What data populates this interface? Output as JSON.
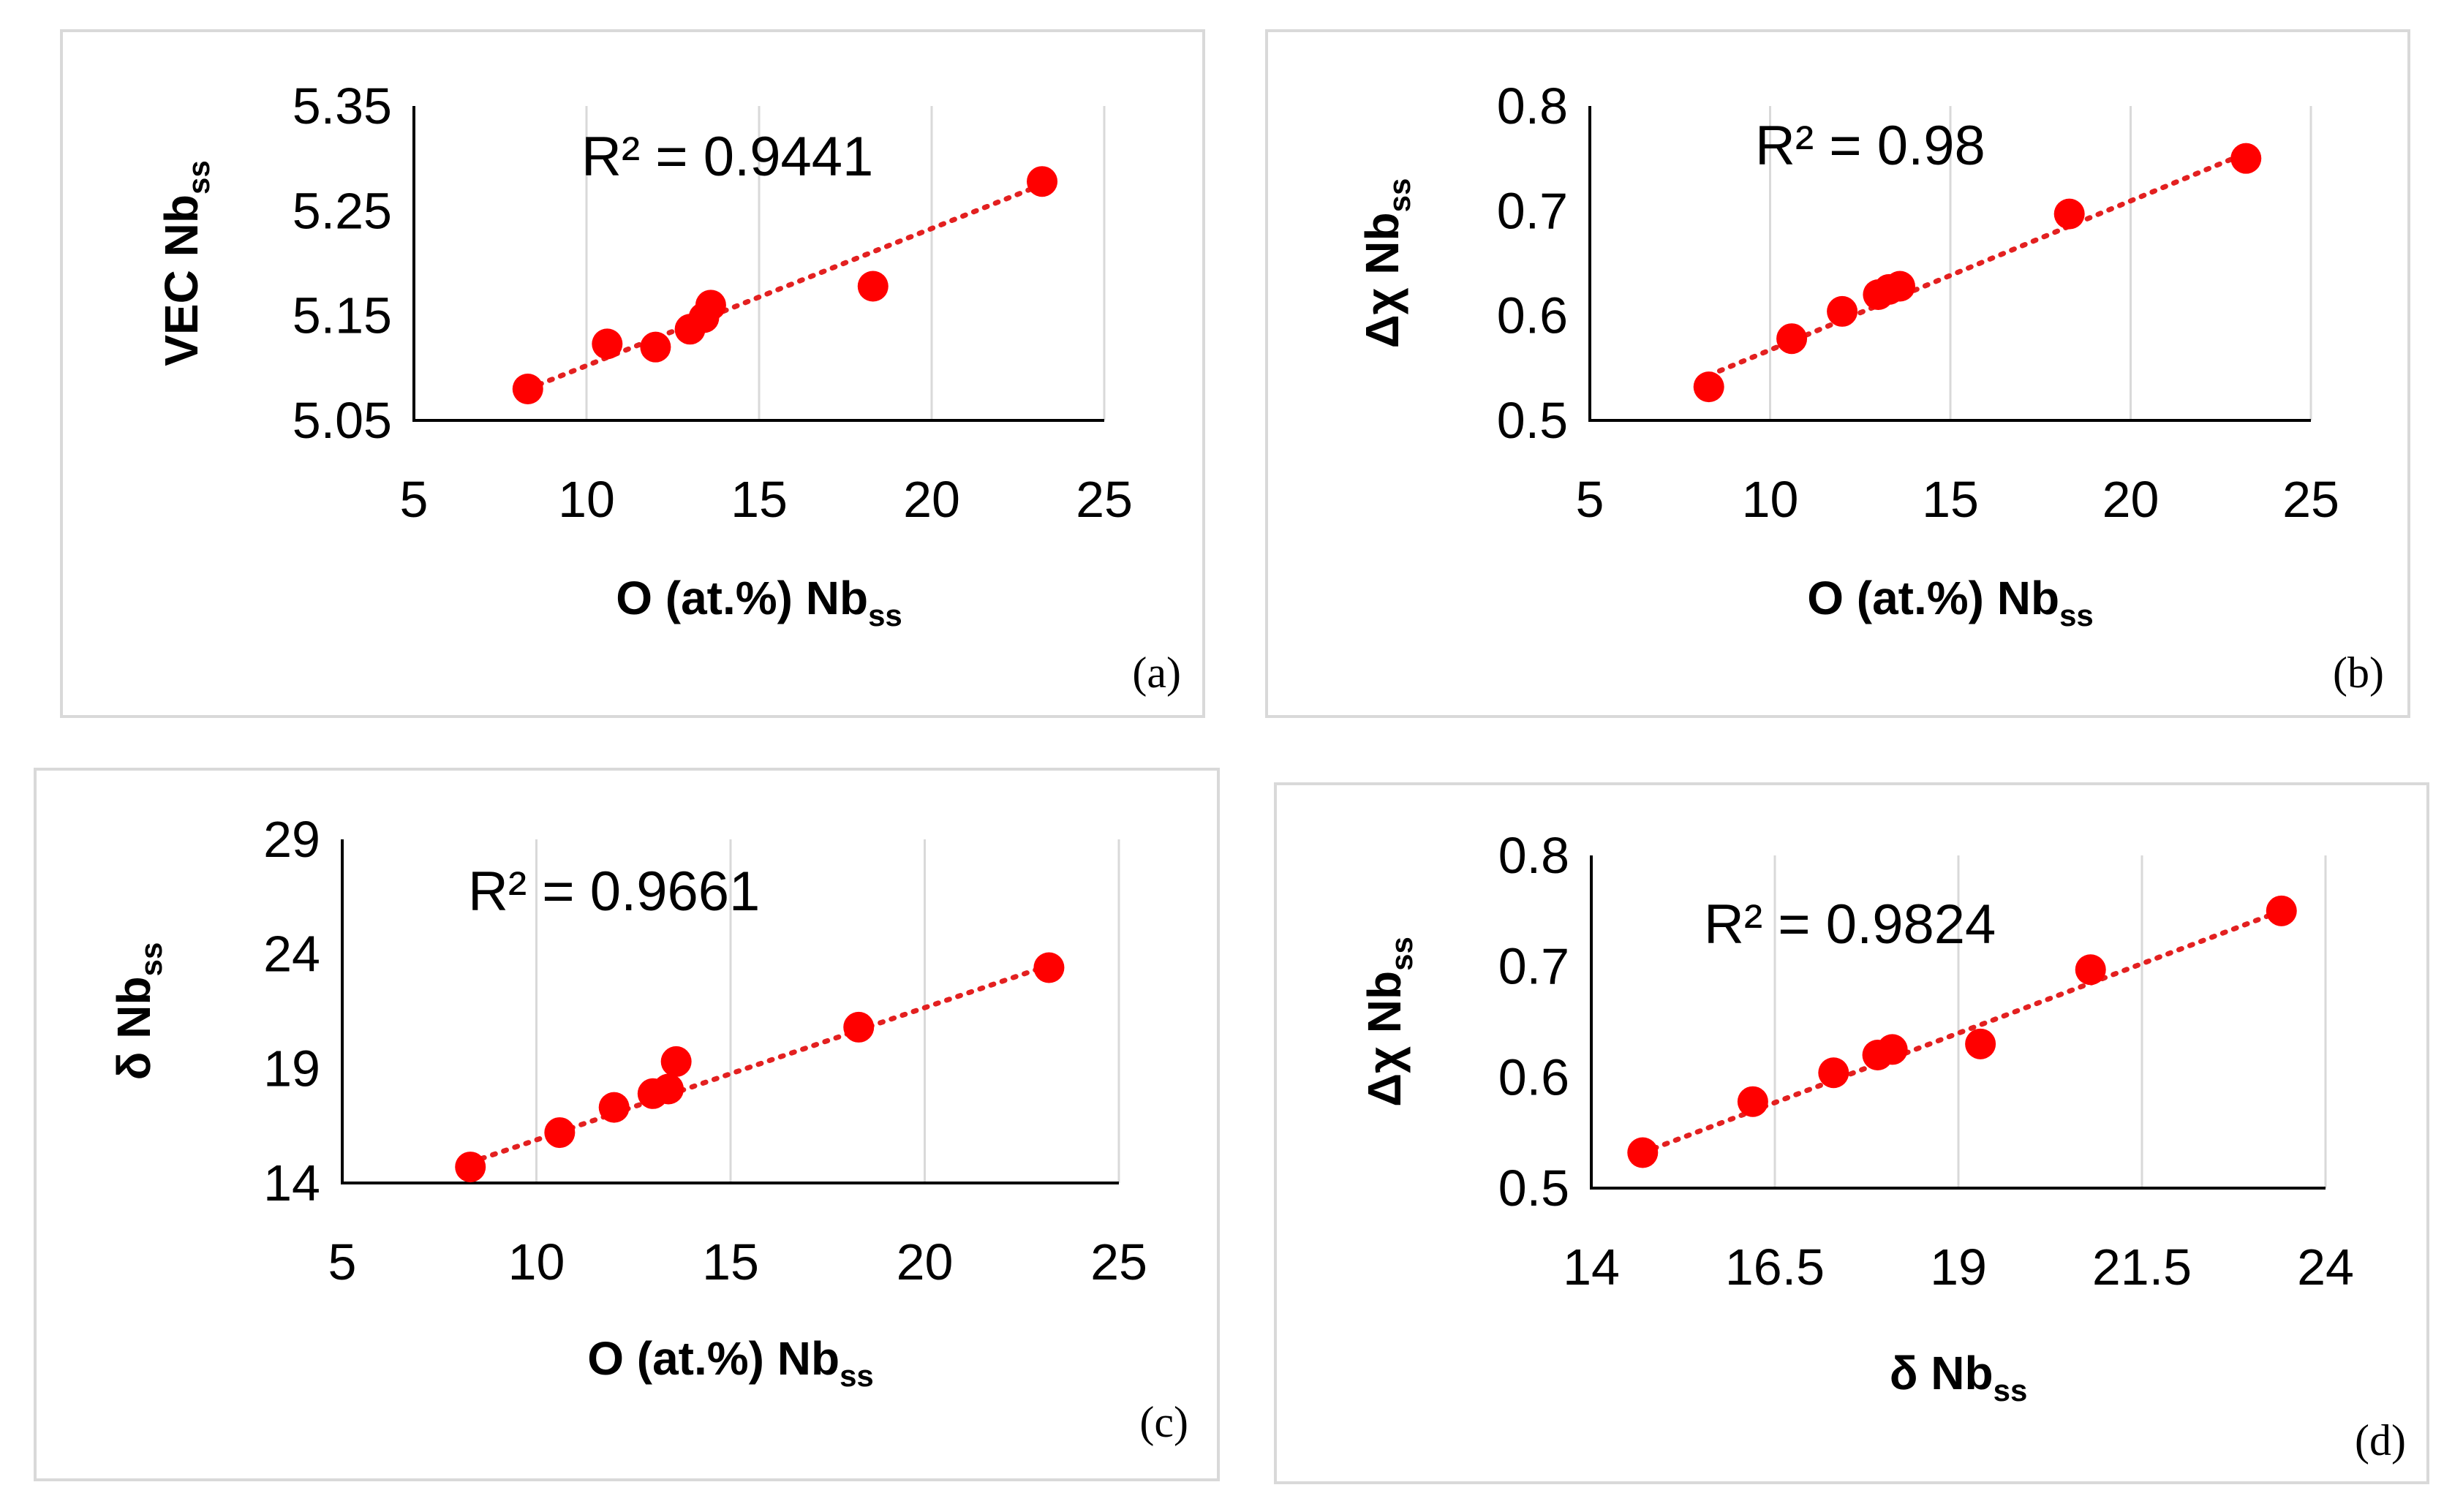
{
  "chart_data": [
    {
      "id": "a",
      "type": "scatter",
      "panel_label": "(a)",
      "r2": "R² = 0.9441",
      "xlabel_main": "O (at.%) Nb",
      "xlabel_sub": "ss",
      "ylabel_main": "VEC Nb",
      "ylabel_sub": "ss",
      "xlim": [
        5,
        25
      ],
      "ylim": [
        5.05,
        5.35
      ],
      "xticks": [
        "5",
        "10",
        "15",
        "20",
        "25"
      ],
      "yticks": [
        "5.05",
        "5.15",
        "5.25",
        "5.35"
      ],
      "points": [
        [
          8.3,
          5.08
        ],
        [
          10.6,
          5.123
        ],
        [
          12.0,
          5.12
        ],
        [
          13.0,
          5.137
        ],
        [
          13.4,
          5.148
        ],
        [
          13.6,
          5.16
        ],
        [
          18.3,
          5.178
        ],
        [
          23.2,
          5.278
        ]
      ],
      "trendline": [
        [
          8.3,
          5.08
        ],
        [
          23.2,
          5.275
        ]
      ]
    },
    {
      "id": "b",
      "type": "scatter",
      "panel_label": "(b)",
      "r2": "R² = 0.98",
      "xlabel_main": "O (at.%) Nb",
      "xlabel_sub": "ss",
      "ylabel_main": "Δχ Nb",
      "ylabel_sub": "ss",
      "xlim": [
        5,
        25
      ],
      "ylim": [
        0.5,
        0.8
      ],
      "xticks": [
        "5",
        "10",
        "15",
        "20",
        "25"
      ],
      "yticks": [
        "0.5",
        "0.6",
        "0.7",
        "0.8"
      ],
      "points": [
        [
          8.3,
          0.532
        ],
        [
          10.6,
          0.578
        ],
        [
          12.0,
          0.604
        ],
        [
          13.0,
          0.62
        ],
        [
          13.3,
          0.625
        ],
        [
          13.6,
          0.628
        ],
        [
          18.3,
          0.697
        ],
        [
          23.2,
          0.75
        ]
      ],
      "trendline": [
        [
          8.3,
          0.543
        ],
        [
          23.2,
          0.755
        ]
      ]
    },
    {
      "id": "c",
      "type": "scatter",
      "panel_label": "(c)",
      "r2": "R² = 0.9661",
      "xlabel_main": "O (at.%) Nb",
      "xlabel_sub": "ss",
      "ylabel_main": "δ Nb",
      "ylabel_sub": "ss",
      "xlim": [
        5,
        25
      ],
      "ylim": [
        14,
        29
      ],
      "xticks": [
        "5",
        "10",
        "15",
        "20",
        "25"
      ],
      "yticks": [
        "14",
        "19",
        "24",
        "29"
      ],
      "points": [
        [
          8.3,
          14.7
        ],
        [
          10.6,
          16.2
        ],
        [
          12.0,
          17.3
        ],
        [
          13.0,
          17.9
        ],
        [
          13.4,
          18.1
        ],
        [
          13.6,
          19.3
        ],
        [
          18.3,
          20.8
        ],
        [
          23.2,
          23.4
        ]
      ],
      "trendline": [
        [
          8.3,
          14.9
        ],
        [
          23.2,
          23.5
        ]
      ]
    },
    {
      "id": "d",
      "type": "scatter",
      "panel_label": "(d)",
      "r2": "R² = 0.9824",
      "xlabel_main": "δ Nb",
      "xlabel_sub": "ss",
      "ylabel_main": "Δχ Nb",
      "ylabel_sub": "ss",
      "xlim": [
        14,
        24
      ],
      "ylim": [
        0.5,
        0.8
      ],
      "xticks": [
        "14",
        "16.5",
        "19",
        "21.5",
        "24"
      ],
      "yticks": [
        "0.5",
        "0.6",
        "0.7",
        "0.8"
      ],
      "points": [
        [
          14.7,
          0.532
        ],
        [
          16.2,
          0.578
        ],
        [
          17.3,
          0.604
        ],
        [
          17.9,
          0.62
        ],
        [
          18.1,
          0.625
        ],
        [
          19.3,
          0.63
        ],
        [
          20.8,
          0.697
        ],
        [
          23.4,
          0.75
        ]
      ],
      "trendline": [
        [
          14.7,
          0.532
        ],
        [
          23.4,
          0.75
        ]
      ]
    }
  ],
  "colors": {
    "marker": "#ff0000",
    "trendline": "#e32020",
    "axis": "#000000",
    "gridline": "#d9d9d9",
    "border": "#d9d9d9"
  }
}
